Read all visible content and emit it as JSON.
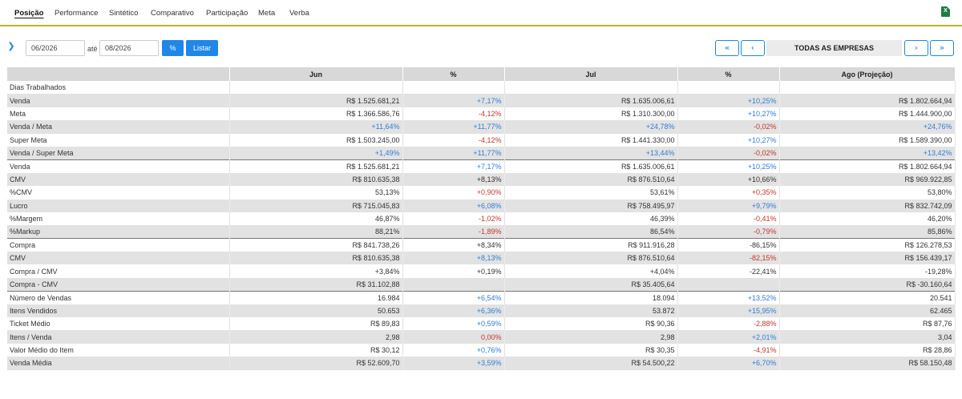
{
  "tabs": [
    "Posição",
    "Performance",
    "Sintético",
    "Comparativo",
    "Participação",
    "Meta",
    "Verba"
  ],
  "active_tab": 0,
  "toolbar": {
    "date_from": "06/2026",
    "ate_label": "até",
    "date_to": "08/2026",
    "percent_label": "%",
    "listar_label": "Listar",
    "first_label": "«",
    "prev_label": "‹",
    "empresas_label": "TODAS AS EMPRESAS",
    "next_label": "›",
    "last_label": "»"
  },
  "table": {
    "headers": [
      "",
      "Jun",
      "%",
      "Jul",
      "%",
      "Ago (Projeção)"
    ],
    "rows": [
      {
        "label": "Dias Trabalhados",
        "jun": "",
        "pct1": "",
        "pct1_tone": "neu",
        "jul": "",
        "pct2": "",
        "pct2_tone": "neu",
        "ago": "",
        "sep": false
      },
      {
        "label": "Venda",
        "jun": "R$ 1.525.681,21",
        "pct1": "+7,17%",
        "pct1_tone": "pos",
        "jul": "R$ 1.635.006,61",
        "pct2": "+10,25%",
        "pct2_tone": "pos",
        "ago": "R$ 1.802.664,94",
        "sep": false
      },
      {
        "label": "Meta",
        "jun": "R$ 1.366.586,76",
        "pct1": "-4,12%",
        "pct1_tone": "neg",
        "jul": "R$ 1.310.300,00",
        "pct2": "+10,27%",
        "pct2_tone": "pos",
        "ago": "R$ 1.444.900,00",
        "sep": false
      },
      {
        "label": "Venda / Meta",
        "jun": "+11,64%",
        "jun_tone": "pos",
        "pct1": "+11,77%",
        "pct1_tone": "pos",
        "jul": "+24,78%",
        "jul_tone": "pos",
        "pct2": "-0,02%",
        "pct2_tone": "neg",
        "ago": "+24,76%",
        "ago_tone": "pos",
        "sep": false
      },
      {
        "label": "Super Meta",
        "jun": "R$ 1.503.245,00",
        "pct1": "-4,12%",
        "pct1_tone": "neg",
        "jul": "R$ 1.441.330,00",
        "pct2": "+10,27%",
        "pct2_tone": "pos",
        "ago": "R$ 1.589.390,00",
        "sep": false
      },
      {
        "label": "Venda / Super Meta",
        "jun": "+1,49%",
        "jun_tone": "pos",
        "pct1": "+11,77%",
        "pct1_tone": "pos",
        "jul": "+13,44%",
        "jul_tone": "pos",
        "pct2": "-0,02%",
        "pct2_tone": "neg",
        "ago": "+13,42%",
        "ago_tone": "pos",
        "sep": false
      },
      {
        "label": "Venda",
        "jun": "R$ 1.525.681,21",
        "pct1": "+7,17%",
        "pct1_tone": "pos",
        "jul": "R$ 1.635.006,61",
        "pct2": "+10,25%",
        "pct2_tone": "pos",
        "ago": "R$ 1.802.664,94",
        "sep": true
      },
      {
        "label": "CMV",
        "jun": "R$ 810.635,38",
        "pct1": "+8,13%",
        "pct1_tone": "neu",
        "jul": "R$ 876.510,64",
        "pct2": "+10,66%",
        "pct2_tone": "neu",
        "ago": "R$ 969.922,85",
        "sep": false
      },
      {
        "label": "%CMV",
        "jun": "53,13%",
        "pct1": "+0,90%",
        "pct1_tone": "neg",
        "jul": "53,61%",
        "pct2": "+0,35%",
        "pct2_tone": "neg",
        "ago": "53,80%",
        "sep": false
      },
      {
        "label": "Lucro",
        "jun": "R$ 715.045,83",
        "pct1": "+6,08%",
        "pct1_tone": "pos",
        "jul": "R$ 758.495,97",
        "pct2": "+9,79%",
        "pct2_tone": "pos",
        "ago": "R$ 832.742,09",
        "sep": false
      },
      {
        "label": "%Margem",
        "jun": "46,87%",
        "pct1": "-1,02%",
        "pct1_tone": "neg",
        "jul": "46,39%",
        "pct2": "-0,41%",
        "pct2_tone": "neg",
        "ago": "46,20%",
        "sep": false
      },
      {
        "label": "%Markup",
        "jun": "88,21%",
        "pct1": "-1,89%",
        "pct1_tone": "neg",
        "jul": "86,54%",
        "pct2": "-0,79%",
        "pct2_tone": "neg",
        "ago": "85,86%",
        "sep": false
      },
      {
        "label": "Compra",
        "jun": "R$ 841.738,26",
        "pct1": "+8,34%",
        "pct1_tone": "neu",
        "jul": "R$ 911.916,28",
        "pct2": "-86,15%",
        "pct2_tone": "neu",
        "ago": "R$ 126.278,53",
        "sep": true
      },
      {
        "label": "CMV",
        "jun": "R$ 810.635,38",
        "pct1": "+8,13%",
        "pct1_tone": "pos",
        "jul": "R$ 876.510,64",
        "pct2": "-82,15%",
        "pct2_tone": "neg",
        "ago": "R$ 156.439,17",
        "sep": false
      },
      {
        "label": "Compra / CMV",
        "jun": "+3,84%",
        "jun_tone": "neu",
        "pct1": "+0,19%",
        "pct1_tone": "neu",
        "jul": "+4,04%",
        "jul_tone": "neu",
        "pct2": "-22,41%",
        "pct2_tone": "neu",
        "ago": "-19,28%",
        "ago_tone": "neu",
        "sep": false
      },
      {
        "label": "Compra - CMV",
        "jun": "R$ 31.102,88",
        "pct1": "",
        "pct1_tone": "neu",
        "jul": "R$ 35.405,64",
        "pct2": "",
        "pct2_tone": "neu",
        "ago": "R$ -30.160,64",
        "sep": false
      },
      {
        "label": "Número de Vendas",
        "jun": "16.984",
        "pct1": "+6,54%",
        "pct1_tone": "pos",
        "jul": "18.094",
        "pct2": "+13,52%",
        "pct2_tone": "pos",
        "ago": "20.541",
        "sep": true
      },
      {
        "label": "Itens Vendidos",
        "jun": "50.653",
        "pct1": "+6,36%",
        "pct1_tone": "pos",
        "jul": "53.872",
        "pct2": "+15,95%",
        "pct2_tone": "pos",
        "ago": "62.465",
        "sep": false
      },
      {
        "label": "Ticket Médio",
        "jun": "R$ 89,83",
        "pct1": "+0,59%",
        "pct1_tone": "pos",
        "jul": "R$ 90,36",
        "pct2": "-2,88%",
        "pct2_tone": "neg",
        "ago": "R$ 87,76",
        "sep": false
      },
      {
        "label": "Itens / Venda",
        "jun": "2,98",
        "pct1": "0,00%",
        "pct1_tone": "neg",
        "jul": "2,98",
        "pct2": "+2,01%",
        "pct2_tone": "pos",
        "ago": "3,04",
        "sep": false
      },
      {
        "label": "Valor Médio do Item",
        "jun": "R$ 30,12",
        "pct1": "+0,76%",
        "pct1_tone": "pos",
        "jul": "R$ 30,35",
        "pct2": "-4,91%",
        "pct2_tone": "neg",
        "ago": "R$ 28,86",
        "sep": false
      },
      {
        "label": "Venda Média",
        "jun": "R$ 52.609,70",
        "pct1": "+3,59%",
        "pct1_tone": "pos",
        "jul": "R$ 54.500,22",
        "pct2": "+6,70%",
        "pct2_tone": "pos",
        "ago": "R$ 58.150,48",
        "sep": false
      }
    ]
  },
  "colors": {
    "accent": "#1f87e8",
    "positive": "#2f7ed8",
    "negative": "#c0392b",
    "tab_underline": "#b9b729",
    "excel": "#1e7d45"
  }
}
